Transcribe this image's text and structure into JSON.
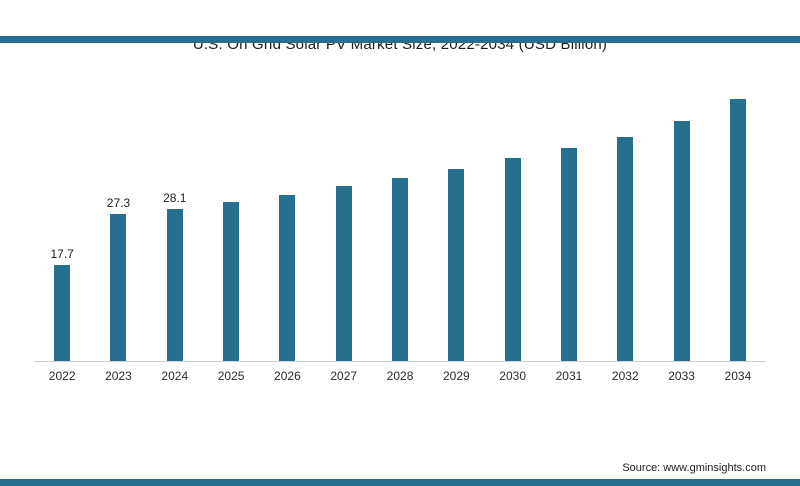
{
  "chart_data": {
    "type": "bar",
    "title": "U.S. On Grid Solar PV Market Size, 2022-2034 (USD Billion)",
    "categories": [
      "2022",
      "2023",
      "2024",
      "2025",
      "2026",
      "2027",
      "2028",
      "2029",
      "2030",
      "2031",
      "2032",
      "2033",
      "2034"
    ],
    "values": [
      17.7,
      27.3,
      28.1,
      29.4,
      30.7,
      32.4,
      33.9,
      35.6,
      37.6,
      39.4,
      41.5,
      44.4,
      48.5
    ],
    "value_labels": [
      "17.7",
      "27.3",
      "28.1",
      "",
      "",
      "",
      "",
      "",
      "",
      "",
      "",
      "",
      ""
    ],
    "xlabel": "",
    "ylabel": "",
    "ylim": [
      0,
      55
    ],
    "grid": false,
    "legend": false,
    "bar_color": "#25708f"
  },
  "source": {
    "label": "Source: www.gminsights.com"
  },
  "colors": {
    "accent": "#25708f",
    "axis": "#cfcfcf",
    "text": "#1c1c1c"
  }
}
